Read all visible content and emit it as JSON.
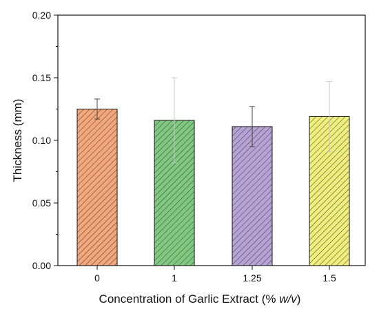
{
  "chart_data": {
    "type": "bar",
    "title": "",
    "xlabel": {
      "prefix": "Concentration of Garlic Extract (% ",
      "italic": "w/v",
      "suffix": ")"
    },
    "ylabel": "Thickness (mm)",
    "ylim": [
      0,
      0.2
    ],
    "yticks": [
      "0.00",
      "0.05",
      "0.10",
      "0.15",
      "0.20"
    ],
    "categories": [
      "0",
      "1",
      "1.25",
      "1.5"
    ],
    "values": [
      0.125,
      0.116,
      0.111,
      0.119
    ],
    "error": [
      0.008,
      0.034,
      0.016,
      0.028
    ],
    "colors": [
      "#f4a77b",
      "#7fc97f",
      "#b7a2d6",
      "#f1ef7b"
    ],
    "error_colors": [
      "#444444",
      "#c8c8c8",
      "#444444",
      "#c8c8c8"
    ],
    "grid": false,
    "hatch": "diagonal"
  }
}
